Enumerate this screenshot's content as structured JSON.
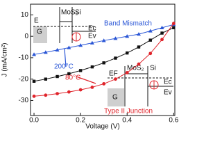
{
  "chart_data": {
    "type": "line",
    "xlabel": "Voltage (V)",
    "ylabel": "J (mA/cm²)",
    "x": [
      0,
      0.05,
      0.1,
      0.15,
      0.2,
      0.25,
      0.3,
      0.35,
      0.4,
      0.45,
      0.5,
      0.55,
      0.6
    ],
    "series": [
      {
        "name": "200°C",
        "color": "#2a56d6",
        "marker": "triangle",
        "values": [
          -8.5,
          -7.5,
          -6.4,
          -5.3,
          -4.2,
          -3.1,
          -2,
          -1,
          0,
          1,
          2.5,
          4,
          5.5
        ]
      },
      {
        "name": "Type II Junction",
        "color": "#111111",
        "marker": "square",
        "values": [
          -21,
          -20,
          -18.8,
          -17.5,
          -16,
          -14.3,
          -12.4,
          -10.2,
          -7.8,
          -5,
          -1.8,
          1.5,
          4
        ]
      },
      {
        "name": "80°C",
        "color": "#e0242b",
        "marker": "circle",
        "values": [
          -28,
          -27.5,
          -26.8,
          -26,
          -25,
          -23.8,
          -22.2,
          -20,
          -17,
          -13,
          -8,
          -1.5,
          6
        ]
      }
    ],
    "xlim": [
      -0.015,
      0.605
    ],
    "xticks": [
      {
        "value": 0,
        "label": "0.0"
      },
      0.2,
      0.4,
      0.6
    ],
    "ylim": [
      -37,
      15
    ],
    "yticks": [
      -30,
      -20,
      -10,
      0,
      10
    ],
    "annotations": [
      {
        "text": "Band Mismatch",
        "color": "#2a56d6"
      },
      {
        "text": "200°C",
        "color": "#2a56d6"
      },
      {
        "text": "80°C",
        "color": "#e0242b"
      },
      {
        "text": "Type II Junction",
        "color": "#e0242b"
      }
    ],
    "insets": [
      {
        "labels": [
          "MoS₂",
          "Si",
          "E",
          "Ec",
          "Ev",
          "G"
        ]
      },
      {
        "labels": [
          "EF",
          "MoS₂",
          "Si",
          "Ec",
          "Ev",
          "G"
        ]
      }
    ]
  }
}
